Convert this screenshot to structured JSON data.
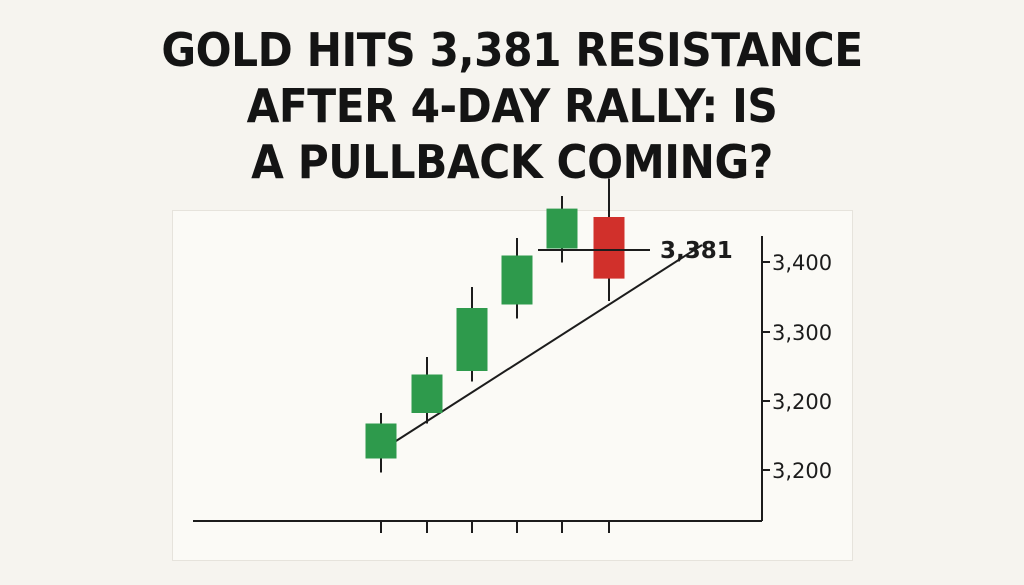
{
  "headline": {
    "lines": [
      "GOLD HITS 3,381 RESISTANCE",
      "AFTER 4-DAY RALLY: IS",
      "A PULLBACK COMING?"
    ]
  },
  "colors": {
    "background": "#f6f4ef",
    "bullish": "#2e9a4c",
    "bearish": "#d1302b",
    "ink": "#1c1c1c"
  },
  "chart_data": {
    "type": "candlestick",
    "title": "",
    "xlabel": "",
    "ylabel": "",
    "y_tick_labels": [
      "3,400",
      "3,300",
      "3,200",
      "3,200"
    ],
    "resistance": {
      "value": 3381,
      "label": "3,381"
    },
    "candles": [
      {
        "open": 3105,
        "close": 3155,
        "high": 3170,
        "low": 3085,
        "direction": "up"
      },
      {
        "open": 3170,
        "close": 3225,
        "high": 3250,
        "low": 3155,
        "direction": "up"
      },
      {
        "open": 3230,
        "close": 3320,
        "high": 3350,
        "low": 3215,
        "direction": "up"
      },
      {
        "open": 3325,
        "close": 3395,
        "high": 3420,
        "low": 3305,
        "direction": "up"
      },
      {
        "open": 3405,
        "close": 3462,
        "high": 3480,
        "low": 3385,
        "direction": "up"
      },
      {
        "open": 3450,
        "close": 3362,
        "high": 3505,
        "low": 3330,
        "direction": "down"
      }
    ],
    "trendline": {
      "start": 3130,
      "end": 3410
    },
    "grid": false,
    "legend": "none"
  }
}
